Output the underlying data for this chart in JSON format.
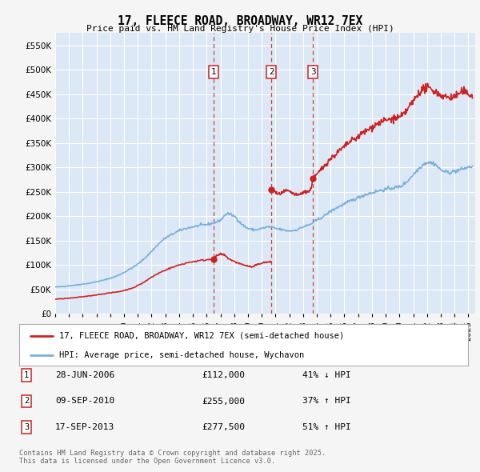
{
  "title": "17, FLEECE ROAD, BROADWAY, WR12 7EX",
  "subtitle": "Price paid vs. HM Land Registry's House Price Index (HPI)",
  "ylim": [
    0,
    575000
  ],
  "yticks": [
    0,
    50000,
    100000,
    150000,
    200000,
    250000,
    300000,
    350000,
    400000,
    450000,
    500000,
    550000
  ],
  "xlim_start": 1995.0,
  "xlim_end": 2025.5,
  "plot_bg_color": "#dce8f5",
  "grid_color": "#ffffff",
  "red_color": "#cc2222",
  "blue_color": "#7ab0d8",
  "transactions": [
    {
      "num": 1,
      "date": "28-JUN-2006",
      "price": 112000,
      "pct": "41%",
      "dir": "↓",
      "x": 2006.49
    },
    {
      "num": 2,
      "date": "09-SEP-2010",
      "price": 255000,
      "pct": "37%",
      "dir": "↑",
      "x": 2010.69
    },
    {
      "num": 3,
      "date": "17-SEP-2013",
      "price": 277500,
      "pct": "51%",
      "dir": "↑",
      "x": 2013.71
    }
  ],
  "legend_label_red": "17, FLEECE ROAD, BROADWAY, WR12 7EX (semi-detached house)",
  "legend_label_blue": "HPI: Average price, semi-detached house, Wychavon",
  "footer_text": "Contains HM Land Registry data © Crown copyright and database right 2025.\nThis data is licensed under the Open Government Licence v3.0.",
  "hpi_key": [
    [
      1995.0,
      55000
    ],
    [
      1995.5,
      56000
    ],
    [
      1996.0,
      57500
    ],
    [
      1996.5,
      59000
    ],
    [
      1997.0,
      61000
    ],
    [
      1997.5,
      63000
    ],
    [
      1998.0,
      66000
    ],
    [
      1998.5,
      69000
    ],
    [
      1999.0,
      73000
    ],
    [
      1999.5,
      78000
    ],
    [
      2000.0,
      85000
    ],
    [
      2000.5,
      93000
    ],
    [
      2001.0,
      102000
    ],
    [
      2001.5,
      114000
    ],
    [
      2002.0,
      128000
    ],
    [
      2002.5,
      143000
    ],
    [
      2003.0,
      155000
    ],
    [
      2003.5,
      163000
    ],
    [
      2004.0,
      170000
    ],
    [
      2004.5,
      175000
    ],
    [
      2005.0,
      178000
    ],
    [
      2005.5,
      181000
    ],
    [
      2006.0,
      183000
    ],
    [
      2006.5,
      186000
    ],
    [
      2007.0,
      192000
    ],
    [
      2007.5,
      205000
    ],
    [
      2008.0,
      200000
    ],
    [
      2008.5,
      185000
    ],
    [
      2009.0,
      175000
    ],
    [
      2009.5,
      172000
    ],
    [
      2010.0,
      175000
    ],
    [
      2010.5,
      178000
    ],
    [
      2011.0,
      175000
    ],
    [
      2011.5,
      172000
    ],
    [
      2012.0,
      170000
    ],
    [
      2012.5,
      172000
    ],
    [
      2013.0,
      178000
    ],
    [
      2013.5,
      183000
    ],
    [
      2014.0,
      192000
    ],
    [
      2014.5,
      200000
    ],
    [
      2015.0,
      210000
    ],
    [
      2015.5,
      218000
    ],
    [
      2016.0,
      225000
    ],
    [
      2016.5,
      232000
    ],
    [
      2017.0,
      238000
    ],
    [
      2017.5,
      244000
    ],
    [
      2018.0,
      248000
    ],
    [
      2018.5,
      252000
    ],
    [
      2019.0,
      255000
    ],
    [
      2019.5,
      258000
    ],
    [
      2020.0,
      260000
    ],
    [
      2020.5,
      270000
    ],
    [
      2021.0,
      285000
    ],
    [
      2021.5,
      300000
    ],
    [
      2022.0,
      310000
    ],
    [
      2022.5,
      308000
    ],
    [
      2023.0,
      295000
    ],
    [
      2023.5,
      290000
    ],
    [
      2024.0,
      292000
    ],
    [
      2024.5,
      296000
    ],
    [
      2025.0,
      300000
    ],
    [
      2025.3,
      302000
    ]
  ],
  "red_seg1": [
    [
      1995.0,
      30000
    ],
    [
      1995.5,
      31000
    ],
    [
      1996.0,
      32000
    ],
    [
      1996.5,
      33500
    ],
    [
      1997.0,
      35000
    ],
    [
      1997.5,
      37000
    ],
    [
      1998.0,
      39000
    ],
    [
      1998.5,
      41000
    ],
    [
      1999.0,
      43000
    ],
    [
      1999.5,
      45000
    ],
    [
      2000.0,
      48000
    ],
    [
      2000.5,
      52000
    ],
    [
      2001.0,
      58000
    ],
    [
      2001.5,
      66000
    ],
    [
      2002.0,
      75000
    ],
    [
      2002.5,
      83000
    ],
    [
      2003.0,
      90000
    ],
    [
      2003.5,
      95000
    ],
    [
      2004.0,
      100000
    ],
    [
      2004.5,
      104000
    ],
    [
      2005.0,
      107000
    ],
    [
      2005.5,
      109000
    ],
    [
      2006.0,
      111000
    ],
    [
      2006.49,
      112000
    ]
  ],
  "red_seg2": [
    [
      2006.49,
      112000
    ],
    [
      2006.7,
      118000
    ],
    [
      2007.0,
      122000
    ],
    [
      2007.3,
      120000
    ],
    [
      2007.5,
      115000
    ],
    [
      2007.8,
      110000
    ],
    [
      2008.0,
      107000
    ],
    [
      2008.3,
      104000
    ],
    [
      2008.6,
      101000
    ],
    [
      2009.0,
      98000
    ],
    [
      2009.3,
      96000
    ],
    [
      2009.6,
      100000
    ],
    [
      2010.0,
      104000
    ],
    [
      2010.4,
      106000
    ],
    [
      2010.69,
      106000
    ]
  ],
  "red_seg3": [
    [
      2010.69,
      255000
    ],
    [
      2010.9,
      252000
    ],
    [
      2011.2,
      245000
    ],
    [
      2011.5,
      248000
    ],
    [
      2011.8,
      252000
    ],
    [
      2012.0,
      250000
    ],
    [
      2012.3,
      246000
    ],
    [
      2012.6,
      243000
    ],
    [
      2012.9,
      247000
    ],
    [
      2013.2,
      250000
    ],
    [
      2013.5,
      252000
    ],
    [
      2013.71,
      277500
    ]
  ],
  "red_seg4": [
    [
      2013.71,
      277500
    ],
    [
      2014.0,
      285000
    ],
    [
      2014.3,
      295000
    ],
    [
      2014.6,
      305000
    ],
    [
      2015.0,
      318000
    ],
    [
      2015.3,
      325000
    ],
    [
      2015.6,
      333000
    ],
    [
      2016.0,
      342000
    ],
    [
      2016.3,
      350000
    ],
    [
      2016.6,
      356000
    ],
    [
      2017.0,
      362000
    ],
    [
      2017.3,
      370000
    ],
    [
      2017.6,
      375000
    ],
    [
      2018.0,
      382000
    ],
    [
      2018.3,
      388000
    ],
    [
      2018.6,
      392000
    ],
    [
      2019.0,
      396000
    ],
    [
      2019.3,
      398000
    ],
    [
      2019.6,
      400000
    ],
    [
      2020.0,
      402000
    ],
    [
      2020.3,
      408000
    ],
    [
      2020.6,
      420000
    ],
    [
      2021.0,
      435000
    ],
    [
      2021.3,
      448000
    ],
    [
      2021.6,
      458000
    ],
    [
      2022.0,
      462000
    ],
    [
      2022.3,
      460000
    ],
    [
      2022.6,
      455000
    ],
    [
      2023.0,
      448000
    ],
    [
      2023.3,
      445000
    ],
    [
      2023.6,
      443000
    ],
    [
      2024.0,
      445000
    ],
    [
      2024.3,
      450000
    ],
    [
      2024.6,
      455000
    ],
    [
      2025.0,
      450000
    ],
    [
      2025.3,
      448000
    ]
  ]
}
